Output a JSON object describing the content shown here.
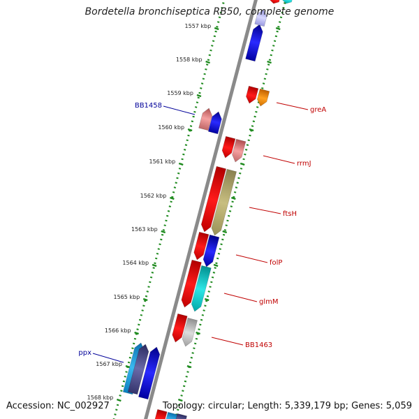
{
  "title": "Bordetella bronchiseptica RB50, complete genome",
  "footer": {
    "accession": "Accession: NC_002927",
    "topology": "Topology: circular; Length: 5,339,179 bp; Genes: 5,059"
  },
  "colors": {
    "backbone": "#8a8a8a",
    "ruler": "#1e8a1e",
    "label_forward": "#c00000",
    "label_reverse": "#000099"
  },
  "ticks": [
    "1557 kbp",
    "1558 kbp",
    "1559 kbp",
    "1560 kbp",
    "1561 kbp",
    "1562 kbp",
    "1563 kbp",
    "1564 kbp",
    "1565 kbp",
    "1566 kbp",
    "1567 kbp",
    "1568 kbp"
  ],
  "gene_labels": [
    {
      "text": "greA",
      "strand": "forward"
    },
    {
      "text": "rrmJ",
      "strand": "forward"
    },
    {
      "text": "ftsH",
      "strand": "forward"
    },
    {
      "text": "folP",
      "strand": "forward"
    },
    {
      "text": "glmM",
      "strand": "forward"
    },
    {
      "text": "BB1463",
      "strand": "forward"
    },
    {
      "text": "BB1458",
      "strand": "reverse"
    },
    {
      "text": "ppx",
      "strand": "reverse"
    }
  ]
}
